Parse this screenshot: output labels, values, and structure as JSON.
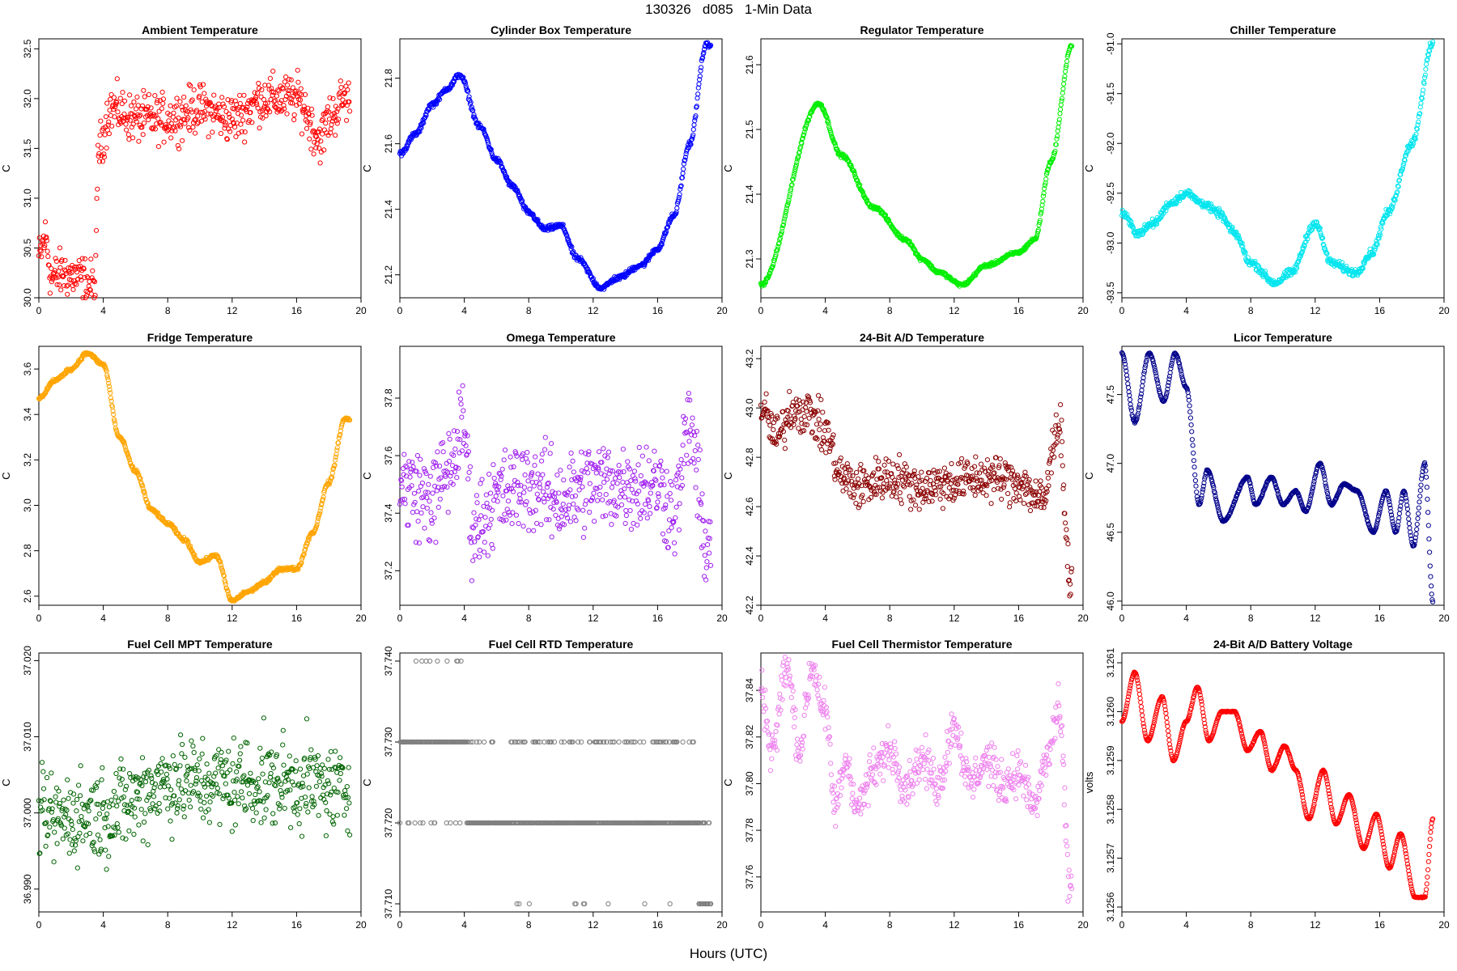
{
  "figure": {
    "title": "130326   d085   1-Min Data",
    "xlabel": "Hours (UTC)"
  },
  "chart_data": [
    {
      "type": "scatter",
      "title": "Ambient Temperature",
      "ylabel": "C",
      "color": "#ff0000",
      "xlim": [
        0,
        20
      ],
      "ylim": [
        30.0,
        32.6
      ],
      "xticks": [
        "0",
        "4",
        "8",
        "12",
        "16",
        "20"
      ],
      "yticks": [
        "30.0",
        "30.5",
        "31.0",
        "31.5",
        "32.0",
        "32.5"
      ],
      "anchors": [
        [
          0,
          30.4
        ],
        [
          0.4,
          30.6
        ],
        [
          0.8,
          30.2
        ],
        [
          1.5,
          30.25
        ],
        [
          2.5,
          30.2
        ],
        [
          3.5,
          30.12
        ],
        [
          3.7,
          31.5
        ],
        [
          4.5,
          31.9
        ],
        [
          6,
          31.8
        ],
        [
          8,
          31.8
        ],
        [
          10,
          31.9
        ],
        [
          12,
          31.8
        ],
        [
          14,
          32.0
        ],
        [
          16,
          32.0
        ],
        [
          17.5,
          31.6
        ],
        [
          18,
          31.8
        ],
        [
          19,
          32.0
        ]
      ],
      "noise": 0.18
    },
    {
      "type": "scatter",
      "title": "Cylinder Box Temperature",
      "ylabel": "C",
      "color": "#0000ff",
      "xlim": [
        0,
        20
      ],
      "ylim": [
        21.13,
        21.92
      ],
      "xticks": [
        "0",
        "4",
        "8",
        "12",
        "16",
        "20"
      ],
      "yticks": [
        "21.2",
        "21.4",
        "21.6",
        "21.8"
      ],
      "anchors": [
        [
          0,
          21.57
        ],
        [
          1,
          21.63
        ],
        [
          2,
          21.72
        ],
        [
          3,
          21.77
        ],
        [
          3.7,
          21.81
        ],
        [
          5,
          21.65
        ],
        [
          6,
          21.55
        ],
        [
          7,
          21.47
        ],
        [
          8,
          21.39
        ],
        [
          9,
          21.34
        ],
        [
          10,
          21.35
        ],
        [
          11,
          21.25
        ],
        [
          12.5,
          21.16
        ],
        [
          13.5,
          21.19
        ],
        [
          15,
          21.23
        ],
        [
          16,
          21.28
        ],
        [
          17,
          21.38
        ],
        [
          18,
          21.6
        ],
        [
          19,
          21.9
        ]
      ],
      "noise": 0.006
    },
    {
      "type": "scatter",
      "title": "Regulator Temperature",
      "ylabel": "C",
      "color": "#00ee00",
      "xlim": [
        0,
        20
      ],
      "ylim": [
        21.24,
        21.64
      ],
      "xticks": [
        "0",
        "4",
        "8",
        "12",
        "16",
        "20"
      ],
      "yticks": [
        "21.3",
        "21.4",
        "21.5",
        "21.6"
      ],
      "anchors": [
        [
          0,
          21.26
        ],
        [
          3.6,
          21.54
        ],
        [
          5,
          21.46
        ],
        [
          7,
          21.38
        ],
        [
          9,
          21.33
        ],
        [
          10,
          21.3
        ],
        [
          11,
          21.28
        ],
        [
          12.5,
          21.26
        ],
        [
          14,
          21.29
        ],
        [
          16,
          21.31
        ],
        [
          17,
          21.33
        ],
        [
          18,
          21.45
        ],
        [
          19.3,
          21.63
        ]
      ],
      "noise": 0.002
    },
    {
      "type": "scatter",
      "title": "Chiller Temperature",
      "ylabel": "C",
      "color": "#00e5ee",
      "xlim": [
        0,
        20
      ],
      "ylim": [
        -93.55,
        -90.95
      ],
      "xticks": [
        "0",
        "4",
        "8",
        "12",
        "16",
        "20"
      ],
      "yticks": [
        "-93.5",
        "-93.0",
        "-92.5",
        "-92.0",
        "-91.5",
        "-91.0"
      ],
      "anchors": [
        [
          0,
          -92.7
        ],
        [
          1,
          -92.9
        ],
        [
          2,
          -92.8
        ],
        [
          3,
          -92.6
        ],
        [
          4,
          -92.5
        ],
        [
          5,
          -92.6
        ],
        [
          6,
          -92.7
        ],
        [
          7,
          -92.9
        ],
        [
          8,
          -93.2
        ],
        [
          9.5,
          -93.4
        ],
        [
          10.5,
          -93.3
        ],
        [
          12,
          -92.8
        ],
        [
          13,
          -93.2
        ],
        [
          14.5,
          -93.3
        ],
        [
          15.5,
          -93.1
        ],
        [
          16.5,
          -92.7
        ],
        [
          18,
          -92.0
        ],
        [
          19.3,
          -91.0
        ]
      ],
      "noise": 0.03
    },
    {
      "type": "scatter",
      "title": "Fridge Temperature",
      "ylabel": "C",
      "color": "#ffa500",
      "xlim": [
        0,
        20
      ],
      "ylim": [
        2.56,
        3.7
      ],
      "xticks": [
        "0",
        "4",
        "8",
        "12",
        "16",
        "20"
      ],
      "yticks": [
        "2.6",
        "2.8",
        "3.0",
        "3.2",
        "3.4",
        "3.6"
      ],
      "anchors": [
        [
          0,
          3.47
        ],
        [
          1,
          3.55
        ],
        [
          2,
          3.6
        ],
        [
          3,
          3.67
        ],
        [
          4,
          3.62
        ],
        [
          5,
          3.3
        ],
        [
          6,
          3.15
        ],
        [
          7,
          2.98
        ],
        [
          8,
          2.92
        ],
        [
          9,
          2.85
        ],
        [
          10,
          2.75
        ],
        [
          11,
          2.78
        ],
        [
          12,
          2.58
        ],
        [
          13,
          2.62
        ],
        [
          14,
          2.66
        ],
        [
          15,
          2.72
        ],
        [
          16,
          2.72
        ],
        [
          17,
          2.88
        ],
        [
          18,
          3.1
        ],
        [
          19,
          3.38
        ]
      ],
      "noise": 0.006
    },
    {
      "type": "scatter",
      "title": "Omega Temperature",
      "ylabel": "C",
      "color": "#a020f0",
      "xlim": [
        0,
        20
      ],
      "ylim": [
        37.08,
        37.98
      ],
      "xticks": [
        "0",
        "4",
        "8",
        "12",
        "16",
        "20"
      ],
      "yticks": [
        "37.2",
        "37.4",
        "37.6",
        "37.8"
      ],
      "anchors": [
        [
          0,
          37.5
        ],
        [
          2,
          37.45
        ],
        [
          3,
          37.55
        ],
        [
          4,
          37.7
        ],
        [
          4.5,
          37.35
        ],
        [
          6,
          37.45
        ],
        [
          8,
          37.5
        ],
        [
          10,
          37.45
        ],
        [
          12,
          37.5
        ],
        [
          14,
          37.5
        ],
        [
          16,
          37.5
        ],
        [
          17,
          37.4
        ],
        [
          18,
          37.7
        ],
        [
          19,
          37.3
        ]
      ],
      "noise": 0.12
    },
    {
      "type": "scatter",
      "title": "24-Bit A/D Temperature",
      "ylabel": "C",
      "color": "#8b0000",
      "xlim": [
        0,
        20
      ],
      "ylim": [
        42.2,
        43.25
      ],
      "xticks": [
        "0",
        "4",
        "8",
        "12",
        "16",
        "20"
      ],
      "yticks": [
        "42.2",
        "42.4",
        "42.6",
        "42.8",
        "43.0",
        "43.2"
      ],
      "anchors": [
        [
          0,
          43.0
        ],
        [
          1,
          42.88
        ],
        [
          2,
          43.0
        ],
        [
          3,
          42.98
        ],
        [
          4,
          42.9
        ],
        [
          5,
          42.72
        ],
        [
          6,
          42.68
        ],
        [
          8,
          42.72
        ],
        [
          10,
          42.68
        ],
        [
          12,
          42.7
        ],
        [
          14,
          42.72
        ],
        [
          16,
          42.7
        ],
        [
          17.5,
          42.62
        ],
        [
          18.5,
          42.95
        ],
        [
          19.2,
          42.3
        ]
      ],
      "noise": 0.07
    },
    {
      "type": "scatter",
      "title": "Licor Temperature",
      "ylabel": "C",
      "color": "#00008b",
      "xlim": [
        0,
        20
      ],
      "ylim": [
        45.97,
        47.85
      ],
      "xticks": [
        "0",
        "4",
        "8",
        "12",
        "16",
        "20"
      ],
      "yticks": [
        "46.0",
        "46.5",
        "47.0",
        "47.5"
      ],
      "anchors": [
        [
          0,
          47.8
        ],
        [
          0.8,
          47.3
        ],
        [
          1.7,
          47.8
        ],
        [
          2.6,
          47.45
        ],
        [
          3.3,
          47.8
        ],
        [
          4,
          47.55
        ],
        [
          4.8,
          46.7
        ],
        [
          5.3,
          46.95
        ],
        [
          6.3,
          46.58
        ],
        [
          7.8,
          46.9
        ],
        [
          8.3,
          46.7
        ],
        [
          9.3,
          46.9
        ],
        [
          10,
          46.7
        ],
        [
          10.8,
          46.8
        ],
        [
          11.4,
          46.65
        ],
        [
          12.3,
          47.0
        ],
        [
          13,
          46.7
        ],
        [
          13.8,
          46.85
        ],
        [
          14.6,
          46.8
        ],
        [
          15.6,
          46.5
        ],
        [
          16.4,
          46.8
        ],
        [
          17,
          46.5
        ],
        [
          17.5,
          46.8
        ],
        [
          18.1,
          46.4
        ],
        [
          18.8,
          47.0
        ],
        [
          19.3,
          46.0
        ]
      ],
      "noise": 0.004
    },
    {
      "type": "scatter",
      "title": "Fuel Cell MPT Temperature",
      "ylabel": "C",
      "color": "#006400",
      "xlim": [
        0,
        20
      ],
      "ylim": [
        36.987,
        37.021
      ],
      "xticks": [
        "0",
        "4",
        "8",
        "12",
        "16",
        "20"
      ],
      "yticks": [
        "36.990",
        "37.000",
        "37.010",
        "37.020"
      ],
      "anchors": [
        [
          0,
          36.999
        ],
        [
          4,
          37.0
        ],
        [
          8,
          37.004
        ],
        [
          12,
          37.004
        ],
        [
          16,
          37.004
        ],
        [
          19,
          37.003
        ]
      ],
      "noise": 0.0045
    },
    {
      "type": "scatter",
      "title": "Fuel Cell RTD Temperature",
      "ylabel": "C",
      "color": "#808080",
      "xlim": [
        0,
        20
      ],
      "ylim": [
        37.709,
        37.741
      ],
      "xticks": [
        "0",
        "4",
        "8",
        "12",
        "16",
        "20"
      ],
      "yticks": [
        "37.710",
        "37.720",
        "37.730",
        "37.740"
      ],
      "levels": [
        37.71,
        37.72,
        37.73,
        37.74
      ]
    },
    {
      "type": "scatter",
      "title": "Fuel Cell Thermistor Temperature",
      "ylabel": "C",
      "color": "#ee82ee",
      "xlim": [
        0,
        20
      ],
      "ylim": [
        37.745,
        37.856
      ],
      "xticks": [
        "0",
        "4",
        "8",
        "12",
        "16",
        "20"
      ],
      "yticks": [
        "37.76",
        "37.78",
        "37.80",
        "37.82",
        "37.84"
      ],
      "anchors": [
        [
          0,
          37.84
        ],
        [
          0.7,
          37.815
        ],
        [
          1.6,
          37.85
        ],
        [
          2.4,
          37.815
        ],
        [
          3.2,
          37.85
        ],
        [
          4,
          37.83
        ],
        [
          4.6,
          37.79
        ],
        [
          5.3,
          37.81
        ],
        [
          6,
          37.79
        ],
        [
          7,
          37.805
        ],
        [
          8,
          37.815
        ],
        [
          9,
          37.8
        ],
        [
          10,
          37.81
        ],
        [
          11,
          37.8
        ],
        [
          12,
          37.825
        ],
        [
          13,
          37.8
        ],
        [
          14,
          37.81
        ],
        [
          15,
          37.8
        ],
        [
          16,
          37.805
        ],
        [
          17,
          37.79
        ],
        [
          17.7,
          37.81
        ],
        [
          18.5,
          37.83
        ],
        [
          19.2,
          37.755
        ]
      ],
      "noise": 0.007
    },
    {
      "type": "scatter",
      "title": "24-Bit A/D Battery Voltage",
      "ylabel": "volts",
      "color": "#ff0000",
      "xlim": [
        0,
        20
      ],
      "ylim": [
        3.12559,
        3.12612
      ],
      "xticks": [
        "0",
        "4",
        "8",
        "12",
        "16",
        "20"
      ],
      "yticks": [
        "3.1256",
        "3.1257",
        "3.1258",
        "3.1259",
        "3.1260",
        "3.1261"
      ],
      "anchors": [
        [
          0,
          3.12598
        ],
        [
          0.8,
          3.12608
        ],
        [
          1.6,
          3.12594
        ],
        [
          2.5,
          3.12603
        ],
        [
          3.2,
          3.1259
        ],
        [
          4,
          3.12598
        ],
        [
          4.7,
          3.12605
        ],
        [
          5.4,
          3.12594
        ],
        [
          6.2,
          3.126
        ],
        [
          7,
          3.126
        ],
        [
          7.8,
          3.12592
        ],
        [
          8.6,
          3.12596
        ],
        [
          9.3,
          3.12588
        ],
        [
          10.1,
          3.12593
        ],
        [
          10.8,
          3.12588
        ],
        [
          11.6,
          3.12578
        ],
        [
          12.5,
          3.12588
        ],
        [
          13.3,
          3.12577
        ],
        [
          14.1,
          3.12583
        ],
        [
          15,
          3.12572
        ],
        [
          15.8,
          3.12579
        ],
        [
          16.6,
          3.12568
        ],
        [
          17.3,
          3.12575
        ],
        [
          18.2,
          3.12562
        ],
        [
          18.8,
          3.12562
        ],
        [
          19.3,
          3.12578
        ]
      ],
      "noise": 8e-07
    }
  ]
}
